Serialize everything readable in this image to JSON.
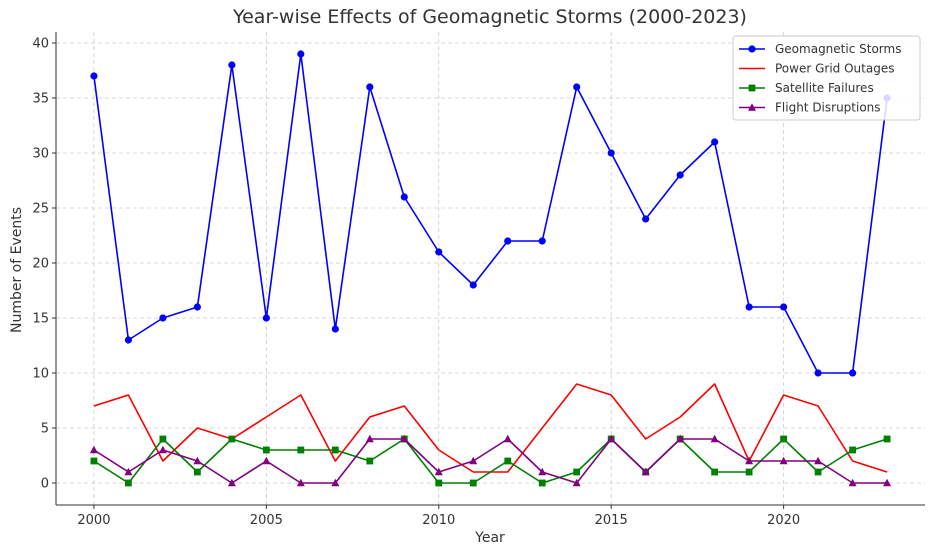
{
  "chart_data": {
    "type": "line",
    "title": "Year-wise Effects of Geomagnetic Storms (2000-2023)",
    "xlabel": "Year",
    "ylabel": "Number of Events",
    "x": [
      2000,
      2001,
      2002,
      2003,
      2004,
      2005,
      2006,
      2007,
      2008,
      2009,
      2010,
      2011,
      2012,
      2013,
      2014,
      2015,
      2016,
      2017,
      2018,
      2019,
      2020,
      2021,
      2022,
      2023
    ],
    "xlim": [
      1998.9,
      2024.1
    ],
    "ylim": [
      -2,
      41
    ],
    "xticks": [
      2000,
      2005,
      2010,
      2015,
      2020
    ],
    "yticks": [
      0,
      5,
      10,
      15,
      20,
      25,
      30,
      35,
      40
    ],
    "grid": true,
    "legend_position": "top-right",
    "series": [
      {
        "name": "Geomagnetic Storms",
        "color": "#0000ff",
        "marker": "circle",
        "values": [
          37,
          13,
          15,
          16,
          38,
          15,
          39,
          14,
          36,
          26,
          21,
          18,
          22,
          22,
          36,
          30,
          24,
          28,
          31,
          16,
          16,
          10,
          10,
          35
        ]
      },
      {
        "name": "Power Grid Outages",
        "color": "#ff0000",
        "marker": "none",
        "values": [
          7,
          8,
          2,
          5,
          4,
          6,
          8,
          2,
          6,
          7,
          3,
          1,
          1,
          5,
          9,
          8,
          4,
          6,
          9,
          2,
          8,
          7,
          2,
          1
        ]
      },
      {
        "name": "Satellite Failures",
        "color": "#008000",
        "marker": "square",
        "values": [
          2,
          0,
          4,
          1,
          4,
          3,
          3,
          3,
          2,
          4,
          0,
          0,
          2,
          0,
          1,
          4,
          1,
          4,
          1,
          1,
          4,
          1,
          3,
          4
        ]
      },
      {
        "name": "Flight Disruptions",
        "color": "#800080",
        "marker": "triangle",
        "values": [
          3,
          1,
          3,
          2,
          0,
          2,
          0,
          0,
          4,
          4,
          1,
          2,
          4,
          1,
          0,
          4,
          1,
          4,
          4,
          2,
          2,
          2,
          0,
          0
        ]
      }
    ]
  }
}
